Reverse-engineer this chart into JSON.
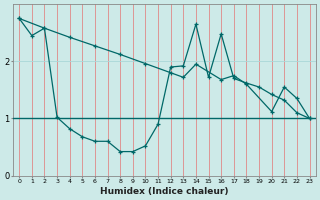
{
  "xlabel": "Humidex (Indice chaleur)",
  "bg_color": "#cdeae8",
  "line_color": "#006868",
  "grid_color_v": "#e08888",
  "grid_color_h": "#aad8d8",
  "line1_x": [
    0,
    1,
    2,
    3,
    4,
    5,
    6,
    7,
    8,
    9,
    10,
    11,
    12,
    13,
    14,
    15,
    16,
    17,
    18,
    19,
    20,
    21,
    22,
    23
  ],
  "line1_y": [
    2.75,
    2.45,
    2.58,
    1.02,
    0.82,
    0.68,
    0.6,
    0.6,
    0.42,
    0.42,
    0.52,
    0.9,
    1.9,
    1.92,
    2.65,
    1.72,
    2.48,
    1.7,
    1.62,
    1.55,
    1.42,
    1.32,
    1.1,
    1.0
  ],
  "line2_x": [
    0,
    2,
    4,
    6,
    8,
    10,
    12,
    13,
    14,
    16,
    17,
    18,
    20,
    21,
    22,
    23
  ],
  "line2_y": [
    2.75,
    2.58,
    2.42,
    2.27,
    2.12,
    1.96,
    1.8,
    1.72,
    1.95,
    1.68,
    1.75,
    1.6,
    1.12,
    1.55,
    1.35,
    1.0
  ],
  "hline_y": 1.0,
  "xlim": [
    -0.5,
    23.5
  ],
  "ylim": [
    0,
    3.0
  ],
  "yticks": [
    0,
    1,
    2
  ],
  "xticks": [
    0,
    1,
    2,
    3,
    4,
    5,
    6,
    7,
    8,
    9,
    10,
    11,
    12,
    13,
    14,
    15,
    16,
    17,
    18,
    19,
    20,
    21,
    22,
    23
  ],
  "figsize": [
    3.2,
    2.0
  ],
  "dpi": 100
}
